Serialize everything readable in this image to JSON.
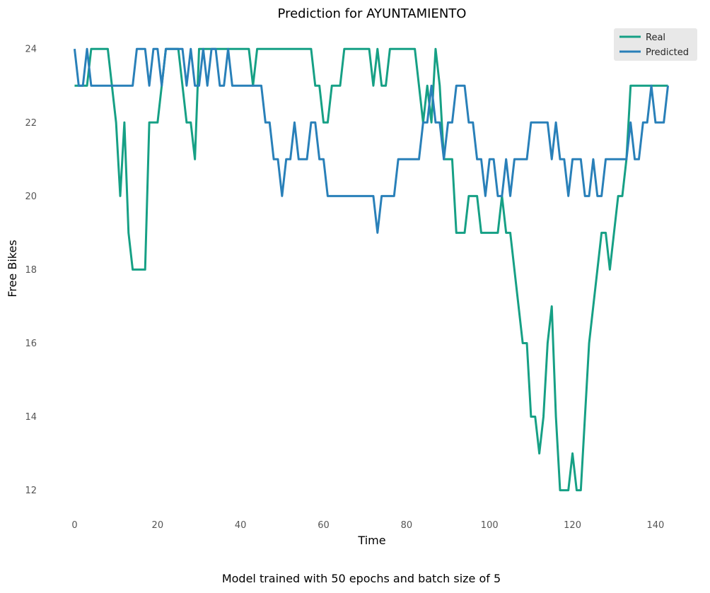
{
  "chart_data": {
    "type": "line",
    "title": "Prediction for AYUNTAMIENTO",
    "xlabel": "Time",
    "ylabel": "Free Bikes",
    "footer": "Model trained with 50 epochs and batch size of 5",
    "xlim": [
      -4,
      147
    ],
    "ylim": [
      11.3,
      24.6
    ],
    "xticks": [
      0,
      20,
      40,
      60,
      80,
      100,
      120,
      140
    ],
    "yticks": [
      12,
      14,
      16,
      18,
      20,
      22,
      24
    ],
    "xtick_labels": [
      "0",
      "20",
      "40",
      "60",
      "80",
      "100",
      "120",
      "140"
    ],
    "ytick_labels": [
      "12",
      "14",
      "16",
      "18",
      "20",
      "22",
      "24"
    ],
    "grid": false,
    "legend_position": "top-right",
    "colors": {
      "Real": "#16a085",
      "Predicted": "#2980b9"
    },
    "series": [
      {
        "name": "Real",
        "values": [
          23,
          23,
          23,
          23,
          24,
          24,
          24,
          24,
          24,
          23,
          22,
          20,
          22,
          19,
          18,
          18,
          18,
          18,
          22,
          22,
          22,
          23,
          24,
          24,
          24,
          24,
          23,
          22,
          22,
          21,
          24,
          24,
          24,
          24,
          24,
          24,
          24,
          24,
          24,
          24,
          24,
          24,
          24,
          23,
          24,
          24,
          24,
          24,
          24,
          24,
          24,
          24,
          24,
          24,
          24,
          24,
          24,
          24,
          23,
          23,
          22,
          22,
          23,
          23,
          23,
          24,
          24,
          24,
          24,
          24,
          24,
          24,
          23,
          24,
          23,
          23,
          24,
          24,
          24,
          24,
          24,
          24,
          24,
          23,
          22,
          23,
          22,
          24,
          23,
          21,
          21,
          21,
          19,
          19,
          19,
          20,
          20,
          20,
          19,
          19,
          19,
          19,
          19,
          20,
          19,
          19,
          18,
          17,
          16,
          16,
          14,
          14,
          13,
          14,
          16,
          17,
          14,
          12,
          12,
          12,
          13,
          12,
          12,
          14,
          16,
          17,
          18,
          19,
          19,
          18,
          19,
          20,
          20,
          21,
          23,
          23,
          23,
          23,
          23,
          23,
          23,
          23,
          23,
          23
        ]
      },
      {
        "name": "Predicted",
        "values": [
          24,
          23,
          23,
          24,
          23,
          23,
          23,
          23,
          23,
          23,
          23,
          23,
          23,
          23,
          23,
          24,
          24,
          24,
          23,
          24,
          24,
          23,
          24,
          24,
          24,
          24,
          24,
          23,
          24,
          23,
          23,
          24,
          23,
          24,
          24,
          23,
          23,
          24,
          23,
          23,
          23,
          23,
          23,
          23,
          23,
          23,
          22,
          22,
          21,
          21,
          20,
          21,
          21,
          22,
          21,
          21,
          21,
          22,
          22,
          21,
          21,
          20,
          20,
          20,
          20,
          20,
          20,
          20,
          20,
          20,
          20,
          20,
          20,
          19,
          20,
          20,
          20,
          20,
          21,
          21,
          21,
          21,
          21,
          21,
          22,
          22,
          23,
          22,
          22,
          21,
          22,
          22,
          23,
          23,
          23,
          22,
          22,
          21,
          21,
          20,
          21,
          21,
          20,
          20,
          21,
          20,
          21,
          21,
          21,
          21,
          22,
          22,
          22,
          22,
          22,
          21,
          22,
          21,
          21,
          20,
          21,
          21,
          21,
          20,
          20,
          21,
          20,
          20,
          21,
          21,
          21,
          21,
          21,
          21,
          22,
          21,
          21,
          22,
          22,
          23,
          22,
          22,
          22,
          23
        ]
      }
    ]
  }
}
